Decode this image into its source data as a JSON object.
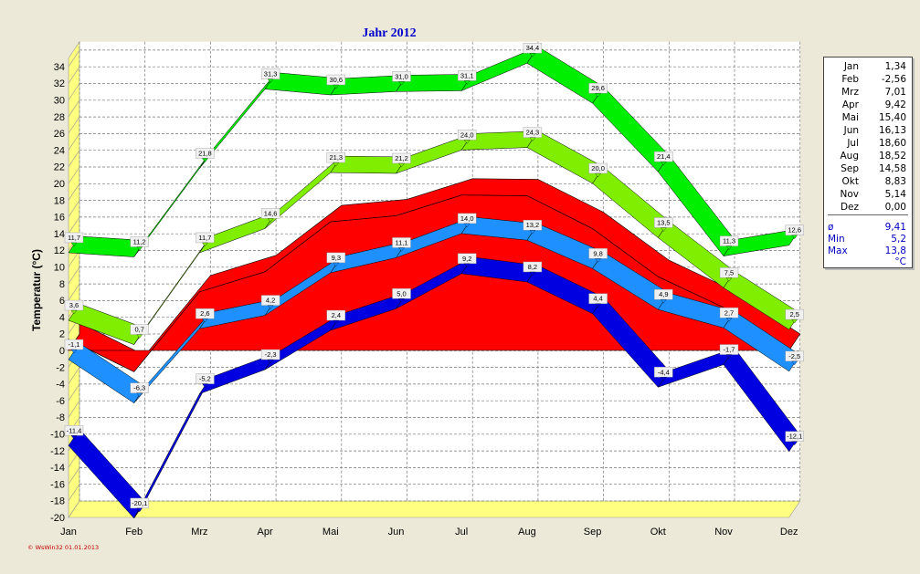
{
  "chart_data": {
    "type": "area",
    "title": "Jahr 2012",
    "ylabel": "Temperatur (°C)",
    "ylim": [
      -20,
      35
    ],
    "yticks": [
      -20,
      -18,
      -16,
      -14,
      -12,
      -10,
      -8,
      -6,
      -4,
      -2,
      0,
      2,
      4,
      6,
      8,
      10,
      12,
      14,
      16,
      18,
      20,
      22,
      24,
      26,
      28,
      30,
      32,
      34
    ],
    "ytick_labels": [
      "-20",
      "-18",
      "-16",
      "-14",
      "-12",
      "-10",
      "-8",
      "-6",
      "-4",
      "-2",
      "0",
      "2",
      "4",
      "6",
      "8",
      "10",
      "12",
      "14",
      "16",
      "18",
      "20",
      "22",
      "24",
      "26",
      "28",
      "30",
      "32",
      "34"
    ],
    "categories": [
      "Jan",
      "Feb",
      "Mrz",
      "Apr",
      "Mai",
      "Jun",
      "Jul",
      "Aug",
      "Sep",
      "Okt",
      "Nov",
      "Dez"
    ],
    "grid": true,
    "band": {
      "values": [
        1.34,
        -2.56,
        7.01,
        9.42,
        15.4,
        16.13,
        18.6,
        18.52,
        14.58,
        8.83,
        5.14,
        0.0
      ],
      "color": "#ff0000"
    },
    "series": [
      {
        "values": [
          11.7,
          11.2,
          21.8,
          31.3,
          30.6,
          31.0,
          31.1,
          34.4,
          29.6,
          21.4,
          11.3,
          12.6
        ],
        "labels": [
          "11,7",
          "11,2",
          "21,8",
          "31,3",
          "30,6",
          "31,0",
          "31,1",
          "34,4",
          "29,6",
          "21,4",
          "11,3",
          "12,6"
        ],
        "color": "#00ee00",
        "thick": 2.0
      },
      {
        "values": [
          3.6,
          0.7,
          11.7,
          14.6,
          21.3,
          21.2,
          24.0,
          24.3,
          20.0,
          13.5,
          7.5,
          2.5
        ],
        "labels": [
          "3,6",
          "0,7",
          "11,7",
          "14,6",
          "21,3",
          "21,2",
          "24,0",
          "24,3",
          "20,0",
          "13,5",
          "7,5",
          "2,5"
        ],
        "color": "#80ee00",
        "thick": 1.4
      },
      {
        "values": [
          -1.1,
          -6.3,
          2.6,
          4.2,
          9.3,
          11.1,
          14.0,
          13.2,
          9.8,
          4.9,
          2.7,
          -2.5
        ],
        "labels": [
          "-1,1",
          "-6,3",
          "2,6",
          "4,2",
          "9,3",
          "11,1",
          "14,0",
          "13,2",
          "9,8",
          "4,9",
          "2,7",
          "-2,5"
        ],
        "color": "#1e90ff",
        "thick": 1.4
      },
      {
        "values": [
          -11.4,
          -20.1,
          -5.2,
          -2.3,
          2.4,
          5.0,
          9.2,
          8.2,
          4.4,
          -4.4,
          -1.7,
          -12.1
        ],
        "labels": [
          "-11,4",
          "-20,1",
          "-5,2",
          "-2,3",
          "2,4",
          "5,0",
          "9,2",
          "8,2",
          "4,4",
          "-4,4",
          "-1,7",
          "-12,1"
        ],
        "color": "#0000e0",
        "thick": 2.0
      }
    ]
  },
  "legend": {
    "months": [
      {
        "m": "Jan",
        "v": "1,34"
      },
      {
        "m": "Feb",
        "v": "-2,56"
      },
      {
        "m": "Mrz",
        "v": "7,01"
      },
      {
        "m": "Apr",
        "v": "9,42"
      },
      {
        "m": "Mai",
        "v": "15,40"
      },
      {
        "m": "Jun",
        "v": "16,13"
      },
      {
        "m": "Jul",
        "v": "18,60"
      },
      {
        "m": "Aug",
        "v": "18,52"
      },
      {
        "m": "Sep",
        "v": "14,58"
      },
      {
        "m": "Okt",
        "v": "8,83"
      },
      {
        "m": "Nov",
        "v": "5,14"
      },
      {
        "m": "Dez",
        "v": "0,00"
      }
    ],
    "stats": [
      {
        "name": "ø",
        "v": "9,41"
      },
      {
        "name": "Min",
        "v": "5,2"
      },
      {
        "name": "Max",
        "v": "13,8"
      }
    ],
    "unit": "°C"
  },
  "footer": "© WsWin32  01.01.2013"
}
